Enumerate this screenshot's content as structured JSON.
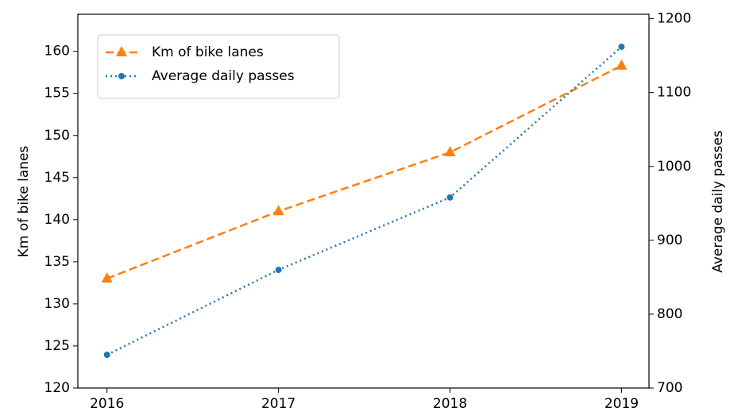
{
  "chart_data": {
    "type": "line",
    "x": [
      2016,
      2017,
      2018,
      2019
    ],
    "xlim": [
      2015.83,
      2019.16
    ],
    "xticks": [
      2016,
      2017,
      2018,
      2019
    ],
    "ylabel": "Km of bike lanes",
    "y2label": "Average daily passes",
    "ylim": [
      120,
      164.4
    ],
    "yticks": [
      120,
      125,
      130,
      135,
      140,
      145,
      150,
      155,
      160
    ],
    "y2lim": [
      700,
      1206
    ],
    "y2ticks": [
      700,
      800,
      900,
      1000,
      1100,
      1200
    ],
    "legend": "upper left",
    "grid": false,
    "series": [
      {
        "name": "Km of bike lanes",
        "color": "#ff7f0e",
        "marker": "triangle",
        "linestyle": "dashed",
        "axis": "y",
        "values": [
          133,
          141,
          148,
          158.3
        ]
      },
      {
        "name": "Average daily passes",
        "color": "#1f77b4",
        "marker": "circle",
        "linestyle": "dotted",
        "axis": "y2",
        "values": [
          745,
          860,
          958,
          1162
        ]
      }
    ]
  }
}
